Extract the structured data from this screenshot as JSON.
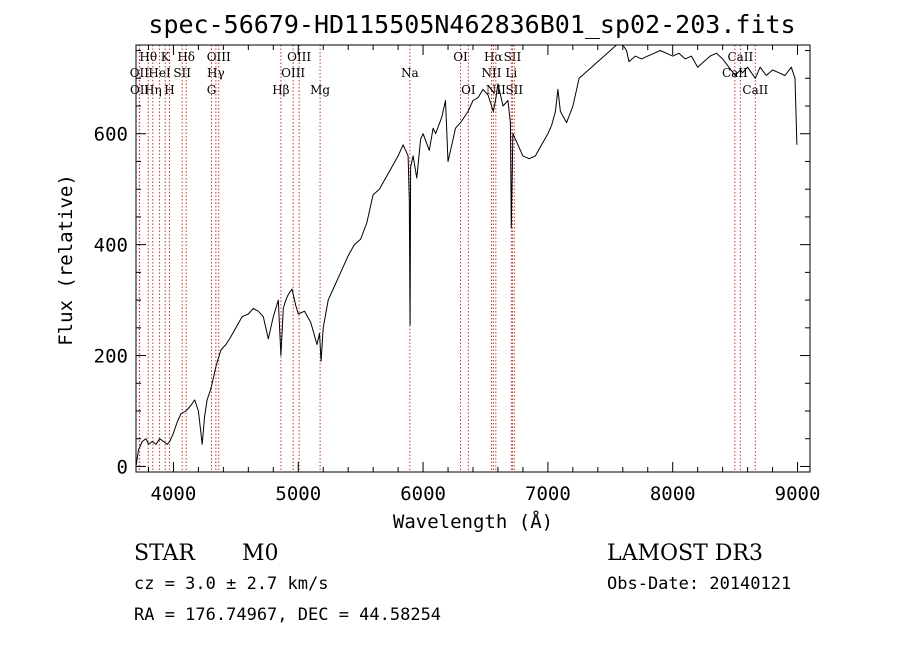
{
  "chart_data": {
    "type": "line",
    "title": "spec-56679-HD115505N462836B01_sp02-203.fits",
    "xlabel": "Wavelength (Å)",
    "ylabel": "Flux (relative)",
    "xlim": [
      3700,
      9100
    ],
    "ylim": [
      -10,
      760
    ],
    "xticks": [
      4000,
      5000,
      6000,
      7000,
      8000,
      9000
    ],
    "xtick_labels": [
      "4000",
      "5000",
      "6000",
      "7000",
      "8000",
      "9000"
    ],
    "yticks": [
      0,
      200,
      400,
      600
    ],
    "ytick_labels": [
      "0",
      "200",
      "400",
      "600"
    ],
    "series": [
      {
        "name": "flux",
        "x": [
          3700,
          3720,
          3750,
          3780,
          3800,
          3830,
          3860,
          3890,
          3920,
          3950,
          3970,
          4000,
          4030,
          4060,
          4100,
          4140,
          4170,
          4200,
          4230,
          4250,
          4270,
          4300,
          4340,
          4380,
          4420,
          4450,
          4500,
          4550,
          4600,
          4640,
          4680,
          4720,
          4760,
          4780,
          4800,
          4840,
          4861,
          4880,
          4900,
          4920,
          4950,
          4980,
          5000,
          5050,
          5100,
          5150,
          5170,
          5183,
          5200,
          5240,
          5280,
          5320,
          5360,
          5400,
          5450,
          5500,
          5550,
          5600,
          5650,
          5700,
          5750,
          5800,
          5840,
          5880,
          5890,
          5896,
          5900,
          5920,
          5950,
          5980,
          6000,
          6050,
          6080,
          6100,
          6150,
          6180,
          6200,
          6230,
          6260,
          6300,
          6330,
          6360,
          6400,
          6440,
          6480,
          6520,
          6563,
          6580,
          6600,
          6640,
          6680,
          6700,
          6707,
          6720,
          6760,
          6800,
          6850,
          6900,
          6950,
          7000,
          7030,
          7060,
          7080,
          7100,
          7150,
          7200,
          7250,
          7300,
          7350,
          7400,
          7450,
          7500,
          7550,
          7600,
          7630,
          7650,
          7700,
          7750,
          7800,
          7850,
          7900,
          7950,
          8000,
          8050,
          8100,
          8150,
          8200,
          8250,
          8300,
          8350,
          8400,
          8450,
          8500,
          8542,
          8560,
          8600,
          8662,
          8700,
          8750,
          8800,
          8850,
          8900,
          8950,
          8980,
          8995
        ],
        "y": [
          0,
          30,
          45,
          50,
          40,
          45,
          40,
          50,
          45,
          40,
          45,
          60,
          80,
          95,
          100,
          110,
          120,
          100,
          40,
          90,
          120,
          140,
          180,
          210,
          220,
          230,
          250,
          270,
          275,
          285,
          280,
          270,
          230,
          250,
          270,
          300,
          200,
          285,
          300,
          310,
          320,
          290,
          275,
          280,
          260,
          220,
          240,
          190,
          250,
          300,
          320,
          340,
          360,
          380,
          400,
          410,
          440,
          490,
          500,
          520,
          540,
          560,
          580,
          560,
          480,
          255,
          540,
          560,
          520,
          590,
          600,
          570,
          610,
          600,
          630,
          660,
          550,
          580,
          610,
          620,
          630,
          640,
          660,
          665,
          680,
          670,
          640,
          660,
          690,
          650,
          660,
          620,
          430,
          600,
          580,
          560,
          555,
          560,
          580,
          600,
          615,
          640,
          680,
          640,
          620,
          650,
          700,
          710,
          720,
          730,
          740,
          750,
          760,
          760,
          750,
          730,
          740,
          735,
          740,
          745,
          750,
          745,
          740,
          745,
          735,
          740,
          720,
          730,
          740,
          745,
          735,
          720,
          705,
          715,
          710,
          720,
          700,
          720,
          705,
          715,
          710,
          705,
          720,
          700,
          580
        ]
      }
    ],
    "lines": [
      {
        "name": "Hθ",
        "wl": 3798,
        "row": 1
      },
      {
        "name": "OII",
        "wl": 3727,
        "row": 2
      },
      {
        "name": "OII",
        "wl": 3729,
        "row": 3
      },
      {
        "name": "Hη",
        "wl": 3835,
        "row": 3
      },
      {
        "name": "K",
        "wl": 3934,
        "row": 1
      },
      {
        "name": "HeI",
        "wl": 3889,
        "row": 2
      },
      {
        "name": "H",
        "wl": 3968,
        "row": 3
      },
      {
        "name": "Hδ",
        "wl": 4102,
        "row": 1
      },
      {
        "name": "SII",
        "wl": 4070,
        "row": 2
      },
      {
        "name": "OIII",
        "wl": 4363,
        "row": 1
      },
      {
        "name": "Hγ",
        "wl": 4340,
        "row": 2
      },
      {
        "name": "G",
        "wl": 4305,
        "row": 3
      },
      {
        "name": "Hβ",
        "wl": 4861,
        "row": 3
      },
      {
        "name": "OIII",
        "wl": 5007,
        "row": 1
      },
      {
        "name": "OIII",
        "wl": 4959,
        "row": 2
      },
      {
        "name": "Mg",
        "wl": 5175,
        "row": 3
      },
      {
        "name": "Na",
        "wl": 5894,
        "row": 2
      },
      {
        "name": "OI",
        "wl": 6300,
        "row": 1
      },
      {
        "name": "OI",
        "wl": 6363,
        "row": 3
      },
      {
        "name": "Hα",
        "wl": 6563,
        "row": 1
      },
      {
        "name": "NII",
        "wl": 6548,
        "row": 2
      },
      {
        "name": "NII",
        "wl": 6583,
        "row": 3
      },
      {
        "name": "SII",
        "wl": 6716,
        "row": 1
      },
      {
        "name": "Li",
        "wl": 6707,
        "row": 2
      },
      {
        "name": "SII",
        "wl": 6731,
        "row": 3
      },
      {
        "name": "CaII",
        "wl": 8542,
        "row": 1
      },
      {
        "name": "CaII",
        "wl": 8498,
        "row": 2
      },
      {
        "name": "CaII",
        "wl": 8662,
        "row": 3
      }
    ]
  },
  "info": {
    "object_class": "STAR",
    "subclass": "M0",
    "survey": "LAMOST DR3",
    "cz": "cz = 3.0 ± 2.7 km/s",
    "obs_date": "Obs-Date: 20140121",
    "coords": "RA = 176.74967, DEC =  44.58254"
  }
}
